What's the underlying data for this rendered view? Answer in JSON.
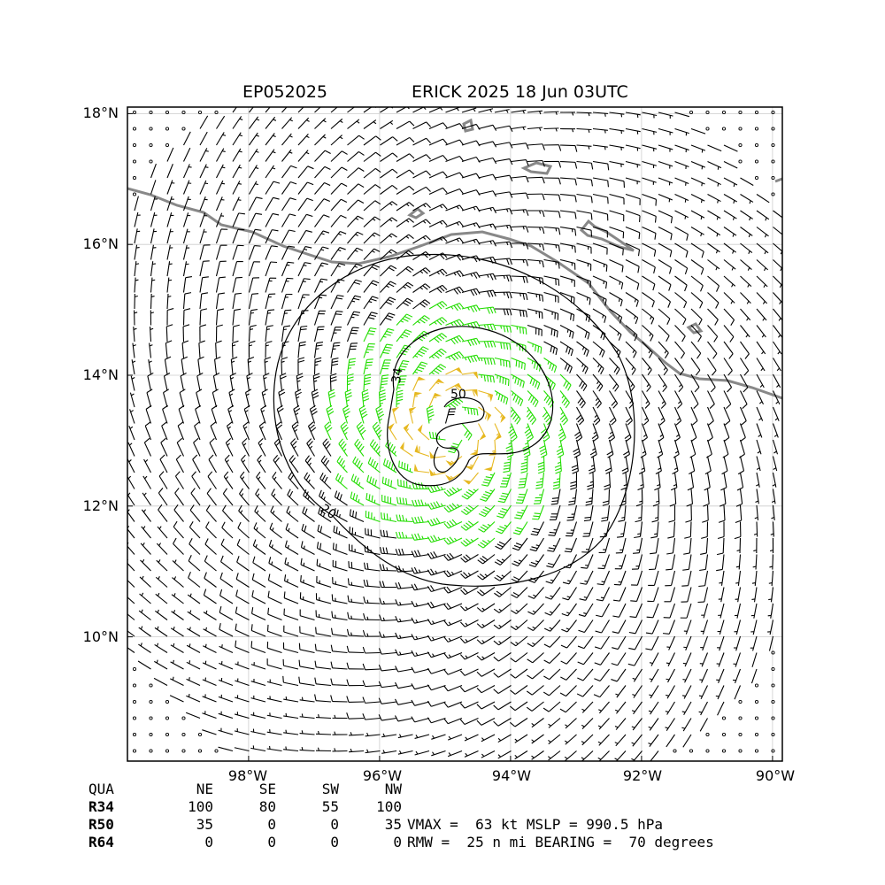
{
  "title": {
    "storm_id": "EP052025",
    "storm_info": "ERICK 2025 18 Jun 03UTC"
  },
  "axes": {
    "lon_ticks": [
      "98°W",
      "96°W",
      "94°W",
      "92°W",
      "90°W"
    ],
    "lat_ticks": [
      "18°N",
      "16°N",
      "14°N",
      "12°N",
      "10°N"
    ]
  },
  "center": {
    "lon": -94.9,
    "lat": 13.2
  },
  "contours": {
    "labels": [
      "34",
      "50",
      "20"
    ]
  },
  "colors": {
    "weak": "#000000",
    "ts": "#22dd00",
    "strong": "#e6b820",
    "hurricane": "#ff6600",
    "coast": "#888888",
    "grid": "#cccccc"
  },
  "wind_radii": {
    "header": [
      "QUA",
      "NE",
      "SE",
      "SW",
      "NW"
    ],
    "rows": [
      {
        "label": "R34",
        "values": [
          "100",
          "80",
          "55",
          "100"
        ]
      },
      {
        "label": "R50",
        "values": [
          "35",
          "0",
          "0",
          "35"
        ]
      },
      {
        "label": "R64",
        "values": [
          "0",
          "0",
          "0",
          "0"
        ]
      }
    ]
  },
  "stats": {
    "line1": "VMAX =  63 kt MSLP = 990.5 hPa",
    "line2": "RMW =  25 n mi BEARING =  70 degrees"
  }
}
